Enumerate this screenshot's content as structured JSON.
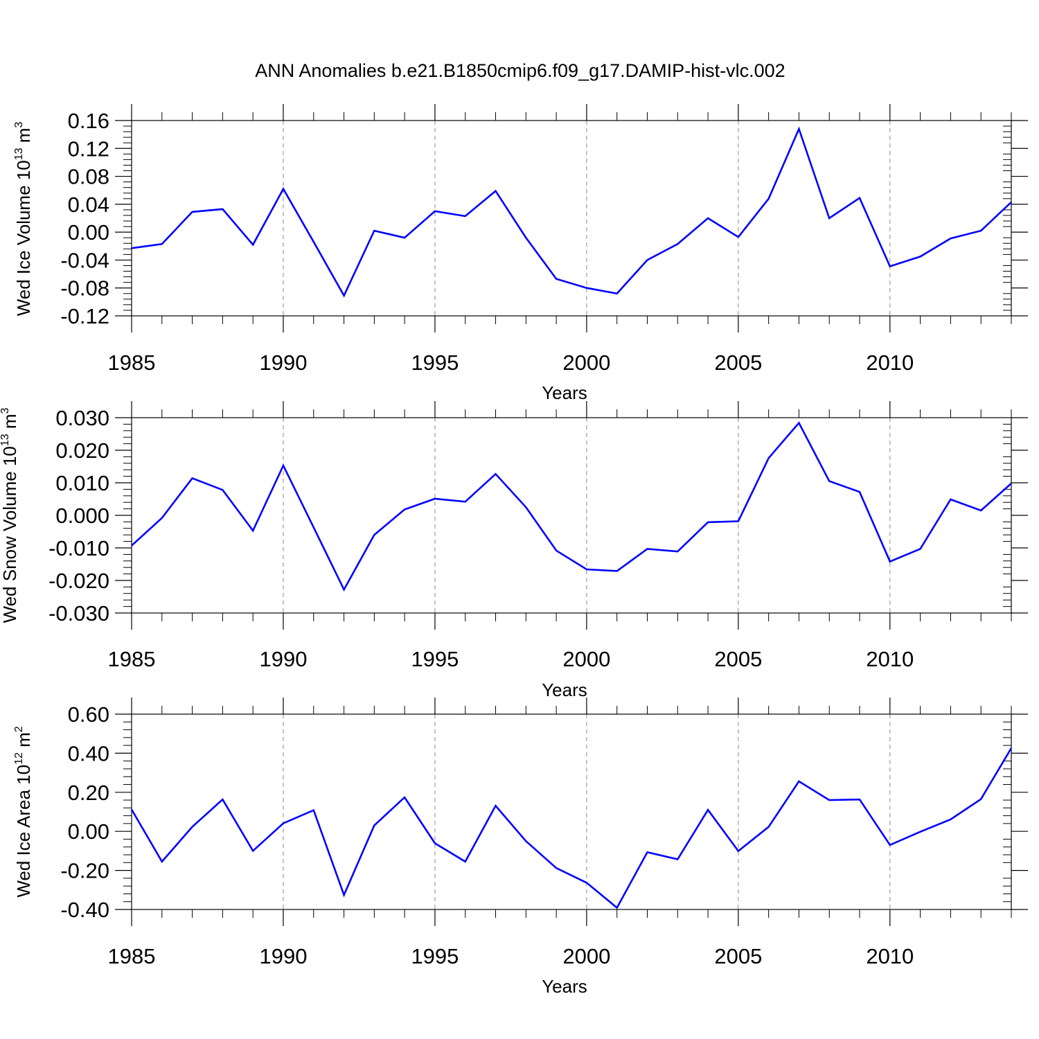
{
  "title": "ANN Anomalies b.e21.B1850cmip6.f09_g17.DAMIP-hist-vlc.002",
  "colors": {
    "line": "#0000ff",
    "axes": "#000000",
    "grid": "#888888"
  },
  "chart_data": [
    {
      "type": "line",
      "xlabel": "Years",
      "ylabel": {
        "base": "Wed Ice Volume 10",
        "exp": "13",
        "unit": " m",
        "unit_exp": "3"
      },
      "xlim": [
        1985,
        2014
      ],
      "ylim": [
        -0.12,
        0.16
      ],
      "xticks": [
        1985,
        1990,
        1995,
        2000,
        2005,
        2010
      ],
      "yticks": [
        "0.16",
        "0.12",
        "0.08",
        "0.04",
        "0.00",
        "-0.04",
        "-0.08",
        "-0.12"
      ],
      "ytick_values": [
        0.16,
        0.12,
        0.08,
        0.04,
        0.0,
        -0.04,
        -0.08,
        -0.12
      ],
      "grid": "vertical dashed at major x ticks",
      "x": [
        1985,
        1986,
        1987,
        1988,
        1989,
        1990,
        1991,
        1992,
        1993,
        1994,
        1995,
        1996,
        1997,
        1998,
        1999,
        2000,
        2001,
        2002,
        2003,
        2004,
        2005,
        2006,
        2007,
        2008,
        2009,
        2010,
        2011,
        2012,
        2013,
        2014
      ],
      "values": [
        -0.023,
        -0.017,
        0.029,
        0.033,
        -0.018,
        0.062,
        -0.014,
        -0.091,
        0.002,
        -0.008,
        0.03,
        0.023,
        0.059,
        -0.008,
        -0.067,
        -0.08,
        -0.088,
        -0.04,
        -0.017,
        0.02,
        -0.007,
        0.048,
        0.148,
        0.02,
        0.049,
        -0.049,
        -0.035,
        -0.009,
        0.002,
        0.043
      ]
    },
    {
      "type": "line",
      "xlabel": "Years",
      "ylabel": {
        "base": "Wed Snow Volume 10",
        "exp": "13",
        "unit": " m",
        "unit_exp": "3"
      },
      "xlim": [
        1985,
        2014
      ],
      "ylim": [
        -0.03,
        0.03
      ],
      "xticks": [
        1985,
        1990,
        1995,
        2000,
        2005,
        2010
      ],
      "yticks": [
        "0.030",
        "0.020",
        "0.010",
        "0.000",
        "-0.010",
        "-0.020",
        "-0.030"
      ],
      "ytick_values": [
        0.03,
        0.02,
        0.01,
        0.0,
        -0.01,
        -0.02,
        -0.03
      ],
      "grid": "vertical dashed at major x ticks",
      "x": [
        1985,
        1986,
        1987,
        1988,
        1989,
        1990,
        1991,
        1992,
        1993,
        1994,
        1995,
        1996,
        1997,
        1998,
        1999,
        2000,
        2001,
        2002,
        2003,
        2004,
        2005,
        2006,
        2007,
        2008,
        2009,
        2010,
        2011,
        2012,
        2013,
        2014
      ],
      "values": [
        -0.0093,
        -0.0008,
        0.0114,
        0.0078,
        -0.0047,
        0.0153,
        -0.0037,
        -0.0228,
        -0.006,
        0.0018,
        0.0051,
        0.0042,
        0.0127,
        0.0025,
        -0.0108,
        -0.0166,
        -0.0171,
        -0.0103,
        -0.0111,
        -0.0021,
        -0.0018,
        0.0176,
        0.0284,
        0.0105,
        0.0072,
        -0.0142,
        -0.0103,
        0.0049,
        0.0015,
        0.0098
      ]
    },
    {
      "type": "line",
      "xlabel": "Years",
      "ylabel": {
        "base": "Wed Ice Area 10",
        "exp": "12",
        "unit": " m",
        "unit_exp": "2"
      },
      "xlim": [
        1985,
        2014
      ],
      "ylim": [
        -0.4,
        0.6
      ],
      "xticks": [
        1985,
        1990,
        1995,
        2000,
        2005,
        2010
      ],
      "yticks": [
        "0.60",
        "0.40",
        "0.20",
        "0.00",
        "-0.20",
        "-0.40"
      ],
      "ytick_values": [
        0.6,
        0.4,
        0.2,
        0.0,
        -0.2,
        -0.4
      ],
      "grid": "vertical dashed at major x ticks",
      "x": [
        1985,
        1986,
        1987,
        1988,
        1989,
        1990,
        1991,
        1992,
        1993,
        1994,
        1995,
        1996,
        1997,
        1998,
        1999,
        2000,
        2001,
        2002,
        2003,
        2004,
        2005,
        2006,
        2007,
        2008,
        2009,
        2010,
        2011,
        2012,
        2013,
        2014
      ],
      "values": [
        0.112,
        -0.155,
        0.023,
        0.163,
        -0.1,
        0.041,
        0.108,
        -0.326,
        0.03,
        0.174,
        -0.061,
        -0.155,
        0.131,
        -0.05,
        -0.188,
        -0.263,
        -0.391,
        -0.107,
        -0.143,
        0.11,
        -0.101,
        0.023,
        0.256,
        0.16,
        0.163,
        -0.07,
        -0.002,
        0.061,
        0.165,
        0.426
      ]
    }
  ]
}
